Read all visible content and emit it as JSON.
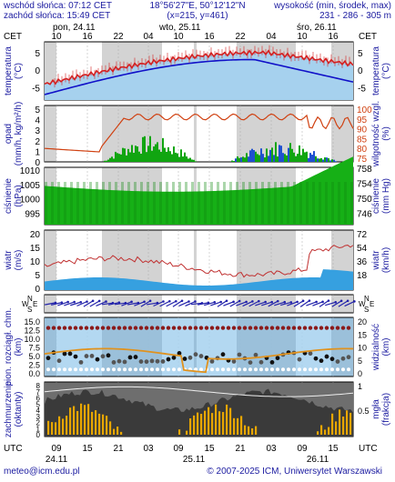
{
  "header": {
    "sunrise": "wschód słońca: 07:12 CET",
    "sunset": "zachód słońca: 15:49 CET",
    "coords": "18°56'27\"E, 50°12'12\"N",
    "grid": "(x=215, y=461)",
    "elev_label": "wysokość (min, środek, max)",
    "elev_values": "231 - 286 - 305 m"
  },
  "timeline_top": {
    "tz_left": "CET",
    "tz_right": "CET",
    "days": [
      "pon, 24.11",
      "wto, 25.11",
      "śro, 26.11"
    ],
    "hours": [
      "10",
      "16",
      "22",
      "04",
      "10",
      "16",
      "22",
      "04",
      "10",
      "16"
    ]
  },
  "timeline_bottom": {
    "tz_left": "UTC",
    "tz_right": "UTC",
    "hours": [
      "09",
      "15",
      "21",
      "03",
      "09",
      "15",
      "21",
      "03",
      "09",
      "15"
    ],
    "dates": [
      "24.11",
      "25.11",
      "26.11"
    ]
  },
  "panels": {
    "temperature": {
      "label_left": "temperatura\n(°C)",
      "label_right": "temperatura\n(°C)",
      "ticks": [
        "5",
        "0",
        "-5"
      ]
    },
    "precip": {
      "label_left": "opad\n(mm/h, kg/m²/h)",
      "label_right": "wilgotność wzgl.\n(%)",
      "ticks_left": [
        "5",
        "4",
        "3",
        "2",
        "1",
        "0"
      ],
      "ticks_right": [
        "100",
        "95",
        "90",
        "85",
        "80",
        "75"
      ]
    },
    "pressure": {
      "label_left": "ciśnienie\n(hPa)",
      "label_right": "ciśnienie\n(mm Hg)",
      "ticks_left": [
        "1010",
        "1005",
        "1000",
        "995"
      ],
      "ticks_right": [
        "758",
        "754",
        "750",
        "746"
      ]
    },
    "wind": {
      "label_left": "wiatr\n(m/s)",
      "label_right": "wiatr\n(km/h)",
      "ticks_left": [
        "20",
        "15",
        "10",
        "5",
        "0"
      ],
      "ticks_right": [
        "72",
        "54",
        "36",
        "18"
      ]
    },
    "wind_dir": {
      "compass_left": [
        "N",
        "W",
        "E",
        "S"
      ],
      "compass_right": [
        "N",
        "W",
        "E",
        "S"
      ]
    },
    "visibility": {
      "label_left": "pion. rozciągł. chm.\n(km)",
      "label_right": "widzialność\n(km)",
      "ticks_left": [
        "15.0",
        "12.5",
        "10.0",
        "7.5",
        "5.0",
        "2.5",
        "0.0"
      ],
      "ticks_right": [
        "20",
        "15",
        "10",
        "5",
        "0"
      ]
    },
    "cloud": {
      "label_left": "zachmurzenie\n(oktanty)",
      "label_right": "mgła\n(frakcja)",
      "ticks_left": [
        "8",
        "7",
        "6",
        "5",
        "4",
        "3",
        "2",
        "1",
        "0"
      ],
      "ticks_right": [
        "1",
        "0.5"
      ]
    }
  },
  "footer": {
    "email": "meteo@icm.edu.pl",
    "copyright": "© 2007-2025 ICM, Uniwersytet Warszawski"
  },
  "colors": {
    "title_blue": "#1a1aa0",
    "sky": "#a6d1ee",
    "night": "#d3d3d3",
    "temp_red": "#d42020",
    "temp_blue": "#1010c8",
    "green": "#11a511",
    "orange": "#e0921e",
    "darkred": "#8b1a1a"
  }
}
